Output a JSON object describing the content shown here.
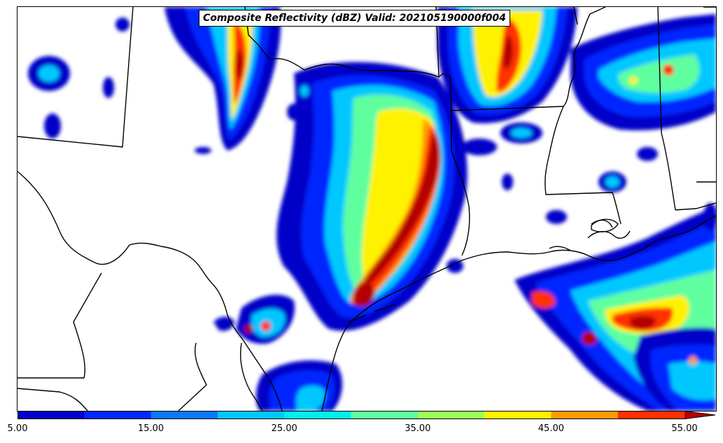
{
  "title": "Composite Reflectivity (dBZ) Valid: 202105190000f004",
  "colorbar": {
    "min": 5.0,
    "max": 55.0,
    "levels": [
      5,
      10,
      15,
      20,
      25,
      30,
      35,
      40,
      45,
      50,
      55
    ],
    "colors": [
      "#0000c8",
      "#0028ff",
      "#0a78ff",
      "#00c8ff",
      "#00f0ee",
      "#5effa0",
      "#9cff5a",
      "#fff200",
      "#ff9a00",
      "#ff3000",
      "#b40000"
    ],
    "extend": "max",
    "tick_labels": [
      {
        "value": 5,
        "label": "5.00"
      },
      {
        "value": 15,
        "label": "15.00"
      },
      {
        "value": 25,
        "label": "25.00"
      },
      {
        "value": 35,
        "label": "35.00"
      },
      {
        "value": 45,
        "label": "45.00"
      },
      {
        "value": 55,
        "label": "55.00"
      }
    ]
  },
  "map": {
    "region": "south-central-united-states",
    "features": [
      "state-borders",
      "coastline",
      "international-border"
    ],
    "background_color": "#ffffff"
  }
}
